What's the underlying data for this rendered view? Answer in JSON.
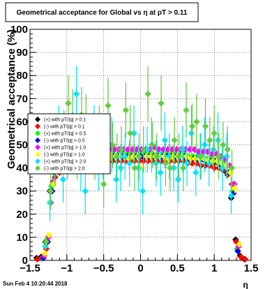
{
  "chart_data": {
    "type": "scatter",
    "title": "Geometrical acceptance for Global vs    η at pT > 0.11",
    "xlabel": "η",
    "ylabel": "Geometrical acceptance (%)",
    "xlim": [
      -1.5,
      1.5
    ],
    "ylim": [
      0,
      100
    ],
    "x_ticks": [
      "−1.5",
      "−1",
      "−0.5",
      "0",
      "0.5",
      "1",
      "1.5"
    ],
    "x_tick_values": [
      -1.5,
      -1,
      -0.5,
      0,
      0.5,
      1,
      1.5
    ],
    "y_ticks": [
      "0",
      "10",
      "20",
      "30",
      "40",
      "50",
      "60",
      "70",
      "80",
      "90",
      "100"
    ],
    "y_tick_values": [
      0,
      10,
      20,
      30,
      40,
      50,
      60,
      70,
      80,
      90,
      100
    ],
    "grid": true,
    "legend_position": "center-left",
    "footer": "Sun Feb  4 10:20:44 2018",
    "series": [
      {
        "name": "(+) with pT/|q| > 0.1",
        "color": "#000000",
        "x": [
          -1.41,
          -1.35,
          -1.29,
          -1.23,
          -1.17,
          -1.11,
          -1.05,
          -0.99,
          -0.93,
          -0.87,
          -0.81,
          -0.75,
          -0.69,
          -0.63,
          -0.57,
          -0.51,
          -0.45,
          -0.39,
          -0.33,
          -0.27,
          -0.21,
          -0.15,
          -0.09,
          -0.03,
          0.03,
          0.09,
          0.15,
          0.21,
          0.27,
          0.33,
          0.39,
          0.45,
          0.51,
          0.57,
          0.63,
          0.69,
          0.75,
          0.81,
          0.87,
          0.93,
          0.99,
          1.05,
          1.11,
          1.17,
          1.23,
          1.29,
          1.35,
          1.41
        ],
        "y": [
          1,
          1.5,
          8,
          30,
          38,
          40,
          42,
          43,
          43,
          44,
          44,
          44,
          45,
          45,
          45,
          45,
          45,
          45,
          45,
          45,
          45,
          45,
          45,
          45,
          45,
          45,
          45,
          45,
          45,
          45,
          45,
          45,
          45,
          45,
          45,
          44,
          44,
          44,
          43,
          43,
          42,
          42,
          40,
          38,
          27,
          9,
          2,
          0.5
        ],
        "yerr": [
          0.5,
          0.5,
          1,
          1,
          1,
          1,
          1,
          1,
          1,
          1,
          1,
          1,
          1,
          1,
          1,
          1,
          1,
          1,
          1,
          1,
          1,
          1,
          1,
          1,
          1,
          1,
          1,
          1,
          1,
          1,
          1,
          1,
          1,
          1,
          1,
          1,
          1,
          1,
          1,
          1,
          1,
          1,
          1,
          1,
          1,
          1,
          0.5,
          0.3
        ]
      },
      {
        "name": "(-) with pT/|q| > 0.1",
        "color": "#ff0000",
        "x": [
          -1.4,
          -1.34,
          -1.28,
          -1.22,
          -1.16,
          -1.1,
          -1.04,
          -0.98,
          -0.92,
          -0.86,
          -0.8,
          -0.74,
          -0.68,
          -0.62,
          -0.56,
          -0.5,
          -0.44,
          -0.38,
          -0.32,
          -0.26,
          -0.2,
          -0.14,
          -0.08,
          -0.02,
          0.04,
          0.1,
          0.16,
          0.22,
          0.28,
          0.34,
          0.4,
          0.46,
          0.52,
          0.58,
          0.64,
          0.7,
          0.76,
          0.82,
          0.88,
          0.94,
          1.0,
          1.06,
          1.12,
          1.18,
          1.24,
          1.3,
          1.36,
          1.42
        ],
        "y": [
          0.5,
          1,
          5,
          25,
          36,
          38,
          39,
          40,
          41,
          41,
          42,
          42,
          42,
          43,
          43,
          43,
          43,
          43,
          43,
          43,
          43,
          43,
          43,
          43,
          43,
          43,
          43,
          43,
          43,
          43,
          43,
          43,
          43,
          43,
          42,
          42,
          42,
          41,
          41,
          41,
          40,
          40,
          39,
          37,
          33,
          8,
          1.5,
          0.5
        ],
        "yerr": [
          0.3,
          0.5,
          1,
          1,
          1,
          1,
          1,
          1,
          1,
          1,
          1,
          1,
          1,
          1,
          1,
          1,
          1,
          1,
          1,
          1,
          1,
          1,
          1,
          1,
          1,
          1,
          1,
          1,
          1,
          1,
          1,
          1,
          1,
          1,
          1,
          1,
          1,
          1,
          1,
          1,
          1,
          1,
          1,
          1,
          1,
          1,
          0.5,
          0.3
        ]
      },
      {
        "name": "(+) with pT/|q| > 0.5",
        "color": "#00ff00",
        "x": [
          -1.33,
          -1.27,
          -1.21,
          -1.15,
          -1.09,
          -1.03,
          -0.97,
          -0.91,
          -0.85,
          -0.79,
          -0.73,
          -0.67,
          -0.61,
          -0.55,
          -0.49,
          -0.43,
          -0.37,
          -0.31,
          -0.25,
          -0.19,
          -0.13,
          -0.07,
          -0.01,
          0.05,
          0.11,
          0.17,
          0.23,
          0.29,
          0.35,
          0.41,
          0.47,
          0.53,
          0.59,
          0.65,
          0.71,
          0.77,
          0.83,
          0.89,
          0.95,
          1.01,
          1.07,
          1.13,
          1.19,
          1.25,
          1.31
        ],
        "y": [
          1,
          9,
          32,
          40,
          43,
          44,
          45,
          45,
          46,
          46,
          46,
          46,
          46,
          46,
          46,
          46,
          46,
          46,
          46,
          46,
          46,
          46,
          46,
          46,
          46,
          46,
          46,
          46,
          46,
          46,
          46,
          46,
          46,
          45,
          45,
          45,
          44,
          44,
          44,
          43,
          43,
          42,
          38,
          30,
          5
        ],
        "yerr": [
          0.5,
          1,
          1,
          1,
          1,
          1,
          1,
          1,
          1,
          1,
          1,
          1,
          1,
          1,
          1,
          1,
          1,
          1,
          1,
          1,
          1,
          1,
          1,
          1,
          1,
          1,
          1,
          1,
          1,
          1,
          1,
          1,
          1,
          1,
          1,
          1,
          1,
          1,
          1,
          1,
          1,
          1,
          1,
          1,
          1
        ]
      },
      {
        "name": "(-) with pT/|q| > 0.5",
        "color": "#0000ff",
        "x": [
          -1.32,
          -1.26,
          -1.2,
          -1.14,
          -1.08,
          -1.02,
          -0.96,
          -0.9,
          -0.84,
          -0.78,
          -0.72,
          -0.66,
          -0.6,
          -0.54,
          -0.48,
          -0.42,
          -0.36,
          -0.3,
          -0.24,
          -0.18,
          -0.12,
          -0.06,
          0.0,
          0.06,
          0.12,
          0.18,
          0.24,
          0.3,
          0.36,
          0.42,
          0.48,
          0.54,
          0.6,
          0.66,
          0.72,
          0.78,
          0.84,
          0.9,
          0.96,
          1.02,
          1.08,
          1.14,
          1.2,
          1.26,
          1.32
        ],
        "y": [
          1,
          8,
          30,
          39,
          42,
          43,
          44,
          44,
          45,
          45,
          45,
          45,
          45,
          45,
          45,
          45,
          45,
          45,
          45,
          45,
          45,
          45,
          45,
          45,
          45,
          45,
          45,
          45,
          45,
          45,
          45,
          45,
          45,
          44,
          44,
          44,
          44,
          43,
          43,
          43,
          42,
          41,
          38,
          29,
          4
        ],
        "yerr": [
          0.5,
          1,
          1,
          1,
          1,
          1,
          1,
          1,
          1,
          1,
          1,
          1,
          1,
          1,
          1,
          1,
          1,
          1,
          1,
          1,
          1,
          1,
          1,
          1,
          1,
          1,
          1,
          1,
          1,
          1,
          1,
          1,
          1,
          1,
          1,
          1,
          1,
          1,
          1,
          1,
          1,
          1,
          1,
          1,
          1
        ]
      },
      {
        "name": "(+) with pT/|q| > 1.0",
        "color": "#ff00ff",
        "x": [
          -1.31,
          -1.25,
          -1.19,
          -1.13,
          -1.07,
          -1.01,
          -0.95,
          -0.89,
          -0.83,
          -0.77,
          -0.71,
          -0.65,
          -0.59,
          -0.53,
          -0.47,
          -0.41,
          -0.35,
          -0.29,
          -0.23,
          -0.17,
          -0.11,
          -0.05,
          0.01,
          0.07,
          0.13,
          0.19,
          0.25,
          0.31,
          0.37,
          0.43,
          0.49,
          0.55,
          0.61,
          0.67,
          0.73,
          0.79,
          0.85,
          0.91,
          0.97,
          1.03,
          1.09,
          1.15,
          1.21,
          1.27,
          1.33
        ],
        "y": [
          2,
          10,
          34,
          42,
          44,
          45,
          46,
          47,
          47,
          47,
          48,
          48,
          48,
          49,
          48,
          48,
          48,
          48,
          48,
          48,
          48,
          48,
          48,
          48,
          48,
          49,
          48,
          48,
          48,
          48,
          48,
          48,
          48,
          48,
          48,
          47,
          47,
          47,
          46,
          46,
          45,
          44,
          41,
          33,
          6
        ],
        "yerr": [
          0.5,
          1,
          1.5,
          1.5,
          1.5,
          1.5,
          1.5,
          1.5,
          1.5,
          1.5,
          1.5,
          1.5,
          1.5,
          1.5,
          1.5,
          1.5,
          1.5,
          1.5,
          1.5,
          1.5,
          1.5,
          1.5,
          1.5,
          1.5,
          1.5,
          1.5,
          1.5,
          1.5,
          1.5,
          1.5,
          1.5,
          1.5,
          1.5,
          1.5,
          1.5,
          1.5,
          1.5,
          1.5,
          1.5,
          1.5,
          1.5,
          1.5,
          1.5,
          1.5,
          1
        ]
      },
      {
        "name": "(-) with pT/|q| > 1.0",
        "color": "#ffff00",
        "x": [
          -1.3,
          -1.24,
          -1.18,
          -1.12,
          -1.06,
          -1.0,
          -0.94,
          -0.88,
          -0.82,
          -0.76,
          -0.7,
          -0.64,
          -0.58,
          -0.52,
          -0.46,
          -0.4,
          -0.34,
          -0.28,
          -0.22,
          -0.16,
          -0.1,
          -0.04,
          0.02,
          0.08,
          0.14,
          0.2,
          0.26,
          0.32,
          0.38,
          0.44,
          0.5,
          0.56,
          0.62,
          0.68,
          0.74,
          0.8,
          0.86,
          0.92,
          0.98,
          1.04,
          1.1,
          1.16,
          1.22,
          1.28,
          1.34
        ],
        "y": [
          3,
          11,
          33,
          40,
          42,
          43,
          44,
          44,
          44,
          45,
          45,
          45,
          44,
          45,
          45,
          45,
          45,
          45,
          45,
          44,
          45,
          45,
          40,
          45,
          45,
          45,
          45,
          45,
          44,
          45,
          45,
          45,
          45,
          44,
          44,
          44,
          44,
          43,
          43,
          43,
          42,
          41,
          38,
          31,
          7
        ],
        "yerr": [
          0.5,
          1,
          2,
          2,
          2,
          2,
          2,
          2,
          2,
          2,
          2,
          2,
          2,
          2,
          2,
          2,
          2,
          2,
          2,
          2,
          2,
          2,
          2,
          2,
          2,
          2,
          2,
          2,
          2,
          2,
          2,
          2,
          2,
          2,
          2,
          2,
          2,
          2,
          2,
          2,
          2,
          2,
          2,
          2,
          1
        ]
      },
      {
        "name": "(+) with pT/|q| > 2.0",
        "color": "#00e5ff",
        "x": [
          -1.29,
          -1.23,
          -1.17,
          -1.11,
          -1.05,
          -0.99,
          -0.93,
          -0.87,
          -0.81,
          -0.75,
          -0.69,
          -0.63,
          -0.57,
          -0.51,
          -0.45,
          -0.39,
          -0.33,
          -0.27,
          -0.21,
          -0.15,
          -0.09,
          -0.03,
          0.03,
          0.09,
          0.15,
          0.21,
          0.27,
          0.33,
          0.39,
          0.45,
          0.51,
          0.57,
          0.63,
          0.69,
          0.75,
          0.81,
          0.87,
          0.93,
          0.99,
          1.05,
          1.11,
          1.17,
          1.23
        ],
        "y": [
          6,
          25,
          45,
          55,
          35,
          45,
          52,
          72,
          40,
          30,
          50,
          55,
          40,
          45,
          48,
          50,
          35,
          40,
          45,
          42,
          55,
          40,
          30,
          48,
          50,
          42,
          38,
          52,
          45,
          40,
          35,
          48,
          42,
          55,
          38,
          45,
          50,
          42,
          48,
          52,
          40,
          45,
          28
        ],
        "yerr": [
          2,
          8,
          10,
          12,
          10,
          10,
          12,
          12,
          10,
          10,
          12,
          12,
          10,
          10,
          10,
          12,
          10,
          10,
          10,
          10,
          12,
          10,
          10,
          10,
          12,
          10,
          10,
          12,
          10,
          10,
          10,
          10,
          10,
          12,
          10,
          10,
          12,
          10,
          10,
          12,
          10,
          10,
          8
        ]
      },
      {
        "name": "(-) with pT/|q| > 2.0",
        "color": "#66cc44",
        "x": [
          -1.28,
          -1.22,
          -1.16,
          -1.1,
          -1.04,
          -0.98,
          -0.92,
          -0.86,
          -0.8,
          -0.74,
          -0.68,
          -0.62,
          -0.56,
          -0.5,
          -0.44,
          -0.38,
          -0.32,
          -0.26,
          -0.2,
          -0.14,
          -0.08,
          -0.02,
          0.04,
          0.1,
          0.16,
          0.22,
          0.28,
          0.34,
          0.4,
          0.46,
          0.52,
          0.58,
          0.62,
          0.7,
          0.76,
          0.82,
          0.88,
          0.94,
          1.0,
          1.06,
          1.12,
          1.18,
          1.24
        ],
        "y": [
          8,
          30,
          42,
          50,
          55,
          68,
          62,
          45,
          63,
          60,
          50,
          45,
          55,
          33,
          67,
          50,
          45,
          48,
          65,
          55,
          40,
          45,
          48,
          72,
          50,
          45,
          68,
          42,
          40,
          52,
          45,
          40,
          65,
          58,
          60,
          45,
          58,
          52,
          55,
          45,
          50,
          48,
          40
        ],
        "yerr": [
          3,
          8,
          10,
          10,
          10,
          12,
          12,
          10,
          12,
          12,
          10,
          10,
          12,
          10,
          12,
          10,
          10,
          10,
          12,
          12,
          10,
          10,
          10,
          12,
          10,
          10,
          12,
          10,
          10,
          10,
          10,
          10,
          12,
          10,
          12,
          10,
          12,
          10,
          12,
          10,
          10,
          10,
          8
        ]
      }
    ]
  }
}
